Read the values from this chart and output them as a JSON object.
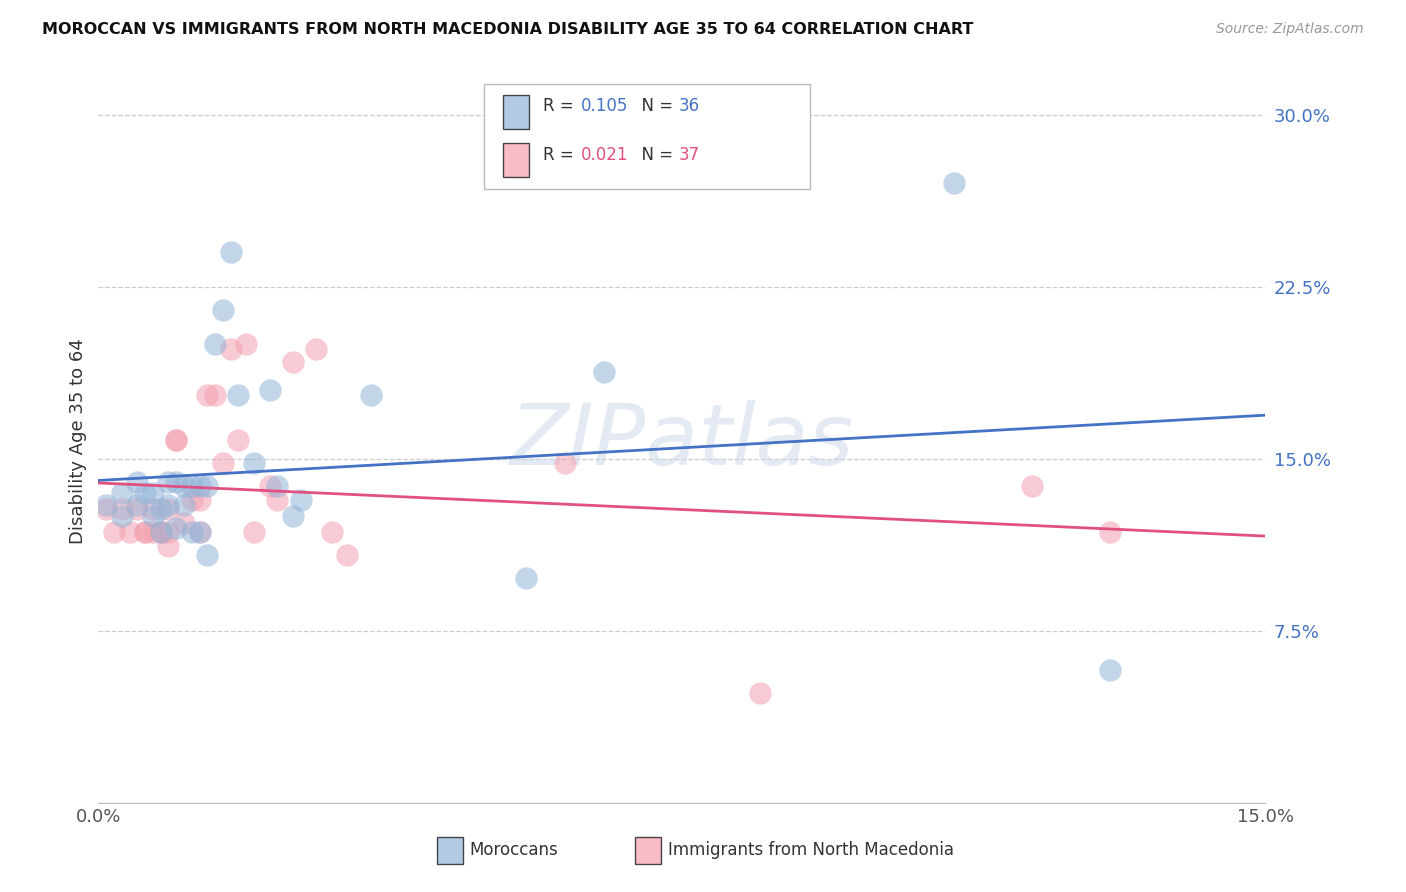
{
  "title": "MOROCCAN VS IMMIGRANTS FROM NORTH MACEDONIA DISABILITY AGE 35 TO 64 CORRELATION CHART",
  "source": "Source: ZipAtlas.com",
  "ylabel": "Disability Age 35 to 64",
  "xlim": [
    0.0,
    0.15
  ],
  "ylim": [
    0.0,
    0.315
  ],
  "x_ticks": [
    0.0,
    0.05,
    0.1,
    0.15
  ],
  "x_tick_labels": [
    "0.0%",
    "",
    "",
    "15.0%"
  ],
  "y_ticks": [
    0.0,
    0.075,
    0.15,
    0.225,
    0.3
  ],
  "y_tick_labels": [
    "",
    "7.5%",
    "15.0%",
    "22.5%",
    "30.0%"
  ],
  "legend_r1_val": "0.105",
  "legend_n1_val": "36",
  "legend_r2_val": "0.021",
  "legend_n2_val": "37",
  "blue_color": "#92B4D8",
  "pink_color": "#F4A0B0",
  "blue_line_color": "#4472C4",
  "pink_line_color": "#E05080",
  "watermark_text": "ZIPatlas",
  "moroccan_x": [
    0.001,
    0.003,
    0.003,
    0.005,
    0.005,
    0.006,
    0.007,
    0.007,
    0.008,
    0.008,
    0.009,
    0.009,
    0.01,
    0.01,
    0.011,
    0.011,
    0.012,
    0.012,
    0.013,
    0.013,
    0.014,
    0.014,
    0.015,
    0.016,
    0.017,
    0.018,
    0.02,
    0.022,
    0.023,
    0.025,
    0.026,
    0.035,
    0.055,
    0.065,
    0.11,
    0.13
  ],
  "moroccan_y": [
    0.13,
    0.135,
    0.125,
    0.13,
    0.14,
    0.135,
    0.125,
    0.135,
    0.128,
    0.118,
    0.14,
    0.13,
    0.14,
    0.12,
    0.138,
    0.13,
    0.138,
    0.118,
    0.138,
    0.118,
    0.138,
    0.108,
    0.2,
    0.215,
    0.24,
    0.178,
    0.148,
    0.18,
    0.138,
    0.125,
    0.132,
    0.178,
    0.098,
    0.188,
    0.27,
    0.058
  ],
  "macedonia_x": [
    0.001,
    0.002,
    0.003,
    0.004,
    0.005,
    0.006,
    0.006,
    0.007,
    0.007,
    0.008,
    0.008,
    0.009,
    0.009,
    0.009,
    0.01,
    0.01,
    0.011,
    0.012,
    0.013,
    0.013,
    0.014,
    0.015,
    0.016,
    0.017,
    0.018,
    0.019,
    0.02,
    0.022,
    0.023,
    0.025,
    0.028,
    0.03,
    0.032,
    0.06,
    0.085,
    0.12,
    0.13
  ],
  "macedonia_y": [
    0.128,
    0.118,
    0.128,
    0.118,
    0.128,
    0.118,
    0.118,
    0.128,
    0.118,
    0.118,
    0.118,
    0.128,
    0.118,
    0.112,
    0.158,
    0.158,
    0.122,
    0.132,
    0.132,
    0.118,
    0.178,
    0.178,
    0.148,
    0.198,
    0.158,
    0.2,
    0.118,
    0.138,
    0.132,
    0.192,
    0.198,
    0.118,
    0.108,
    0.148,
    0.048,
    0.138,
    0.118
  ]
}
